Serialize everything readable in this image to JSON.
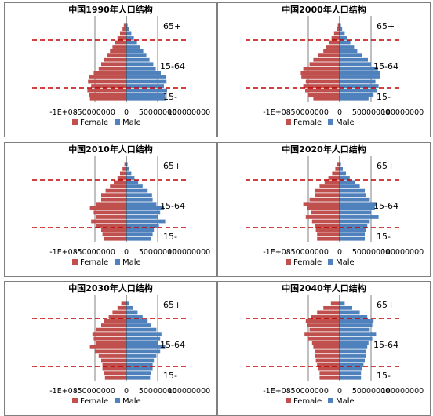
{
  "colors": {
    "female": "#C0504D",
    "male": "#4F81BD",
    "frame": "#7f7f7f",
    "dash": "#C00000"
  },
  "legend": {
    "female": "Female",
    "male": "Male"
  },
  "bands": {
    "elderly": "65+",
    "working": "15-64",
    "young": "15-"
  },
  "chart_data": [
    {
      "type": "bar",
      "orientation": "horizontal",
      "layout": "population-pyramid",
      "title_cn_pre": "中国",
      "title_year": "1990",
      "title_cn_post": "年人口结构",
      "xlim": [
        -100000000,
        100000000
      ],
      "xticks": [
        "-1E+08",
        "-50000000",
        "0",
        "50000000",
        "100000000"
      ],
      "legend_position": "bottom",
      "series": [
        {
          "name": "Female",
          "values": [
            -58000000,
            -60000000,
            -62000000,
            -56000000,
            -61000000,
            -60000000,
            -52000000,
            -44000000,
            -40000000,
            -35000000,
            -30000000,
            -26000000,
            -22000000,
            -18000000,
            -14000000,
            -10000000,
            -6000000,
            -4000000
          ]
        },
        {
          "name": "Male",
          "values": [
            63000000,
            62000000,
            65000000,
            60000000,
            64000000,
            63000000,
            55000000,
            47000000,
            43000000,
            37000000,
            32000000,
            27000000,
            22000000,
            17000000,
            12000000,
            8000000,
            4000000,
            2000000
          ]
        }
      ]
    },
    {
      "type": "bar",
      "orientation": "horizontal",
      "layout": "population-pyramid",
      "title_cn_pre": "中国",
      "title_year": "2000",
      "title_cn_post": "年人口结构",
      "xlim": [
        -100000000,
        100000000
      ],
      "xticks": [
        "-1E+08",
        "-50000000",
        "0",
        "50000000",
        "100000000"
      ],
      "legend_position": "bottom",
      "series": [
        {
          "name": "Female",
          "values": [
            -42000000,
            -50000000,
            -55000000,
            -58000000,
            -54000000,
            -61000000,
            -62000000,
            -58000000,
            -48000000,
            -42000000,
            -34000000,
            -26000000,
            -22000000,
            -17000000,
            -13000000,
            -9000000,
            -5000000,
            -3000000
          ]
        },
        {
          "name": "Male",
          "values": [
            46000000,
            54000000,
            60000000,
            62000000,
            57000000,
            64000000,
            65000000,
            61000000,
            50000000,
            45000000,
            36000000,
            28000000,
            23000000,
            17000000,
            12000000,
            8000000,
            4000000,
            2000000
          ]
        }
      ]
    },
    {
      "type": "bar",
      "orientation": "horizontal",
      "layout": "population-pyramid",
      "title_cn_pre": "中国",
      "title_year": "2010",
      "title_cn_post": "年人口结构",
      "xlim": [
        -100000000,
        100000000
      ],
      "xticks": [
        "-1E+08",
        "-50000000",
        "0",
        "50000000",
        "100000000"
      ],
      "legend_position": "bottom",
      "series": [
        {
          "name": "Female",
          "values": [
            -36000000,
            -38000000,
            -40000000,
            -48000000,
            -56000000,
            -48000000,
            -52000000,
            -58000000,
            -48000000,
            -40000000,
            -40000000,
            -33000000,
            -26000000,
            -20000000,
            -14000000,
            -10000000,
            -6000000,
            -3000000
          ]
        },
        {
          "name": "Male",
          "values": [
            40000000,
            42000000,
            44000000,
            52000000,
            62000000,
            50000000,
            54000000,
            60000000,
            48000000,
            42000000,
            41000000,
            34000000,
            26000000,
            19000000,
            13000000,
            8000000,
            4000000,
            2000000
          ]
        }
      ]
    },
    {
      "type": "bar",
      "orientation": "horizontal",
      "layout": "population-pyramid",
      "title_cn_pre": "中国",
      "title_year": "2020",
      "title_cn_post": "年人口结构",
      "xlim": [
        -100000000,
        100000000
      ],
      "xticks": [
        "-1E+08",
        "-50000000",
        "0",
        "50000000",
        "100000000"
      ],
      "legend_position": "bottom",
      "series": [
        {
          "name": "Female",
          "values": [
            -36000000,
            -36000000,
            -38000000,
            -40000000,
            -44000000,
            -54000000,
            -46000000,
            -52000000,
            -58000000,
            -48000000,
            -40000000,
            -40000000,
            -32000000,
            -24000000,
            -18000000,
            -12000000,
            -7000000,
            -4000000
          ]
        },
        {
          "name": "Male",
          "values": [
            40000000,
            40000000,
            42000000,
            44000000,
            48000000,
            62000000,
            50000000,
            56000000,
            60000000,
            48000000,
            42000000,
            40000000,
            32000000,
            24000000,
            16000000,
            10000000,
            5000000,
            2000000
          ]
        }
      ]
    },
    {
      "type": "bar",
      "orientation": "horizontal",
      "layout": "population-pyramid",
      "title_cn_pre": "中国",
      "title_year": "2030",
      "title_cn_post": "年人口结构",
      "xlim": [
        -100000000,
        100000000
      ],
      "xticks": [
        "-1E+08",
        "-50000000",
        "0",
        "50000000",
        "100000000"
      ],
      "legend_position": "bottom",
      "series": [
        {
          "name": "Female",
          "values": [
            -34000000,
            -36000000,
            -38000000,
            -38000000,
            -40000000,
            -44000000,
            -50000000,
            -58000000,
            -48000000,
            -52000000,
            -54000000,
            -48000000,
            -40000000,
            -36000000,
            -28000000,
            -22000000,
            -14000000,
            -8000000
          ]
        },
        {
          "name": "Male",
          "values": [
            38000000,
            40000000,
            42000000,
            42000000,
            44000000,
            48000000,
            54000000,
            62000000,
            50000000,
            54000000,
            56000000,
            48000000,
            40000000,
            34000000,
            26000000,
            18000000,
            10000000,
            5000000
          ]
        }
      ]
    },
    {
      "type": "bar",
      "orientation": "horizontal",
      "layout": "population-pyramid",
      "title_cn_pre": "中国",
      "title_year": "2040",
      "title_cn_post": "年人口结构",
      "xlim": [
        -100000000,
        100000000
      ],
      "xticks": [
        "-1E+08",
        "-50000000",
        "0",
        "50000000",
        "100000000"
      ],
      "legend_position": "bottom",
      "series": [
        {
          "name": "Female",
          "values": [
            -32000000,
            -32000000,
            -34000000,
            -36000000,
            -38000000,
            -40000000,
            -40000000,
            -42000000,
            -44000000,
            -50000000,
            -56000000,
            -48000000,
            -52000000,
            -54000000,
            -46000000,
            -36000000,
            -26000000,
            -14000000
          ]
        },
        {
          "name": "Male",
          "values": [
            34000000,
            34000000,
            36000000,
            38000000,
            40000000,
            42000000,
            42000000,
            44000000,
            46000000,
            52000000,
            58000000,
            48000000,
            52000000,
            54000000,
            44000000,
            32000000,
            20000000,
            8000000
          ]
        }
      ]
    }
  ]
}
